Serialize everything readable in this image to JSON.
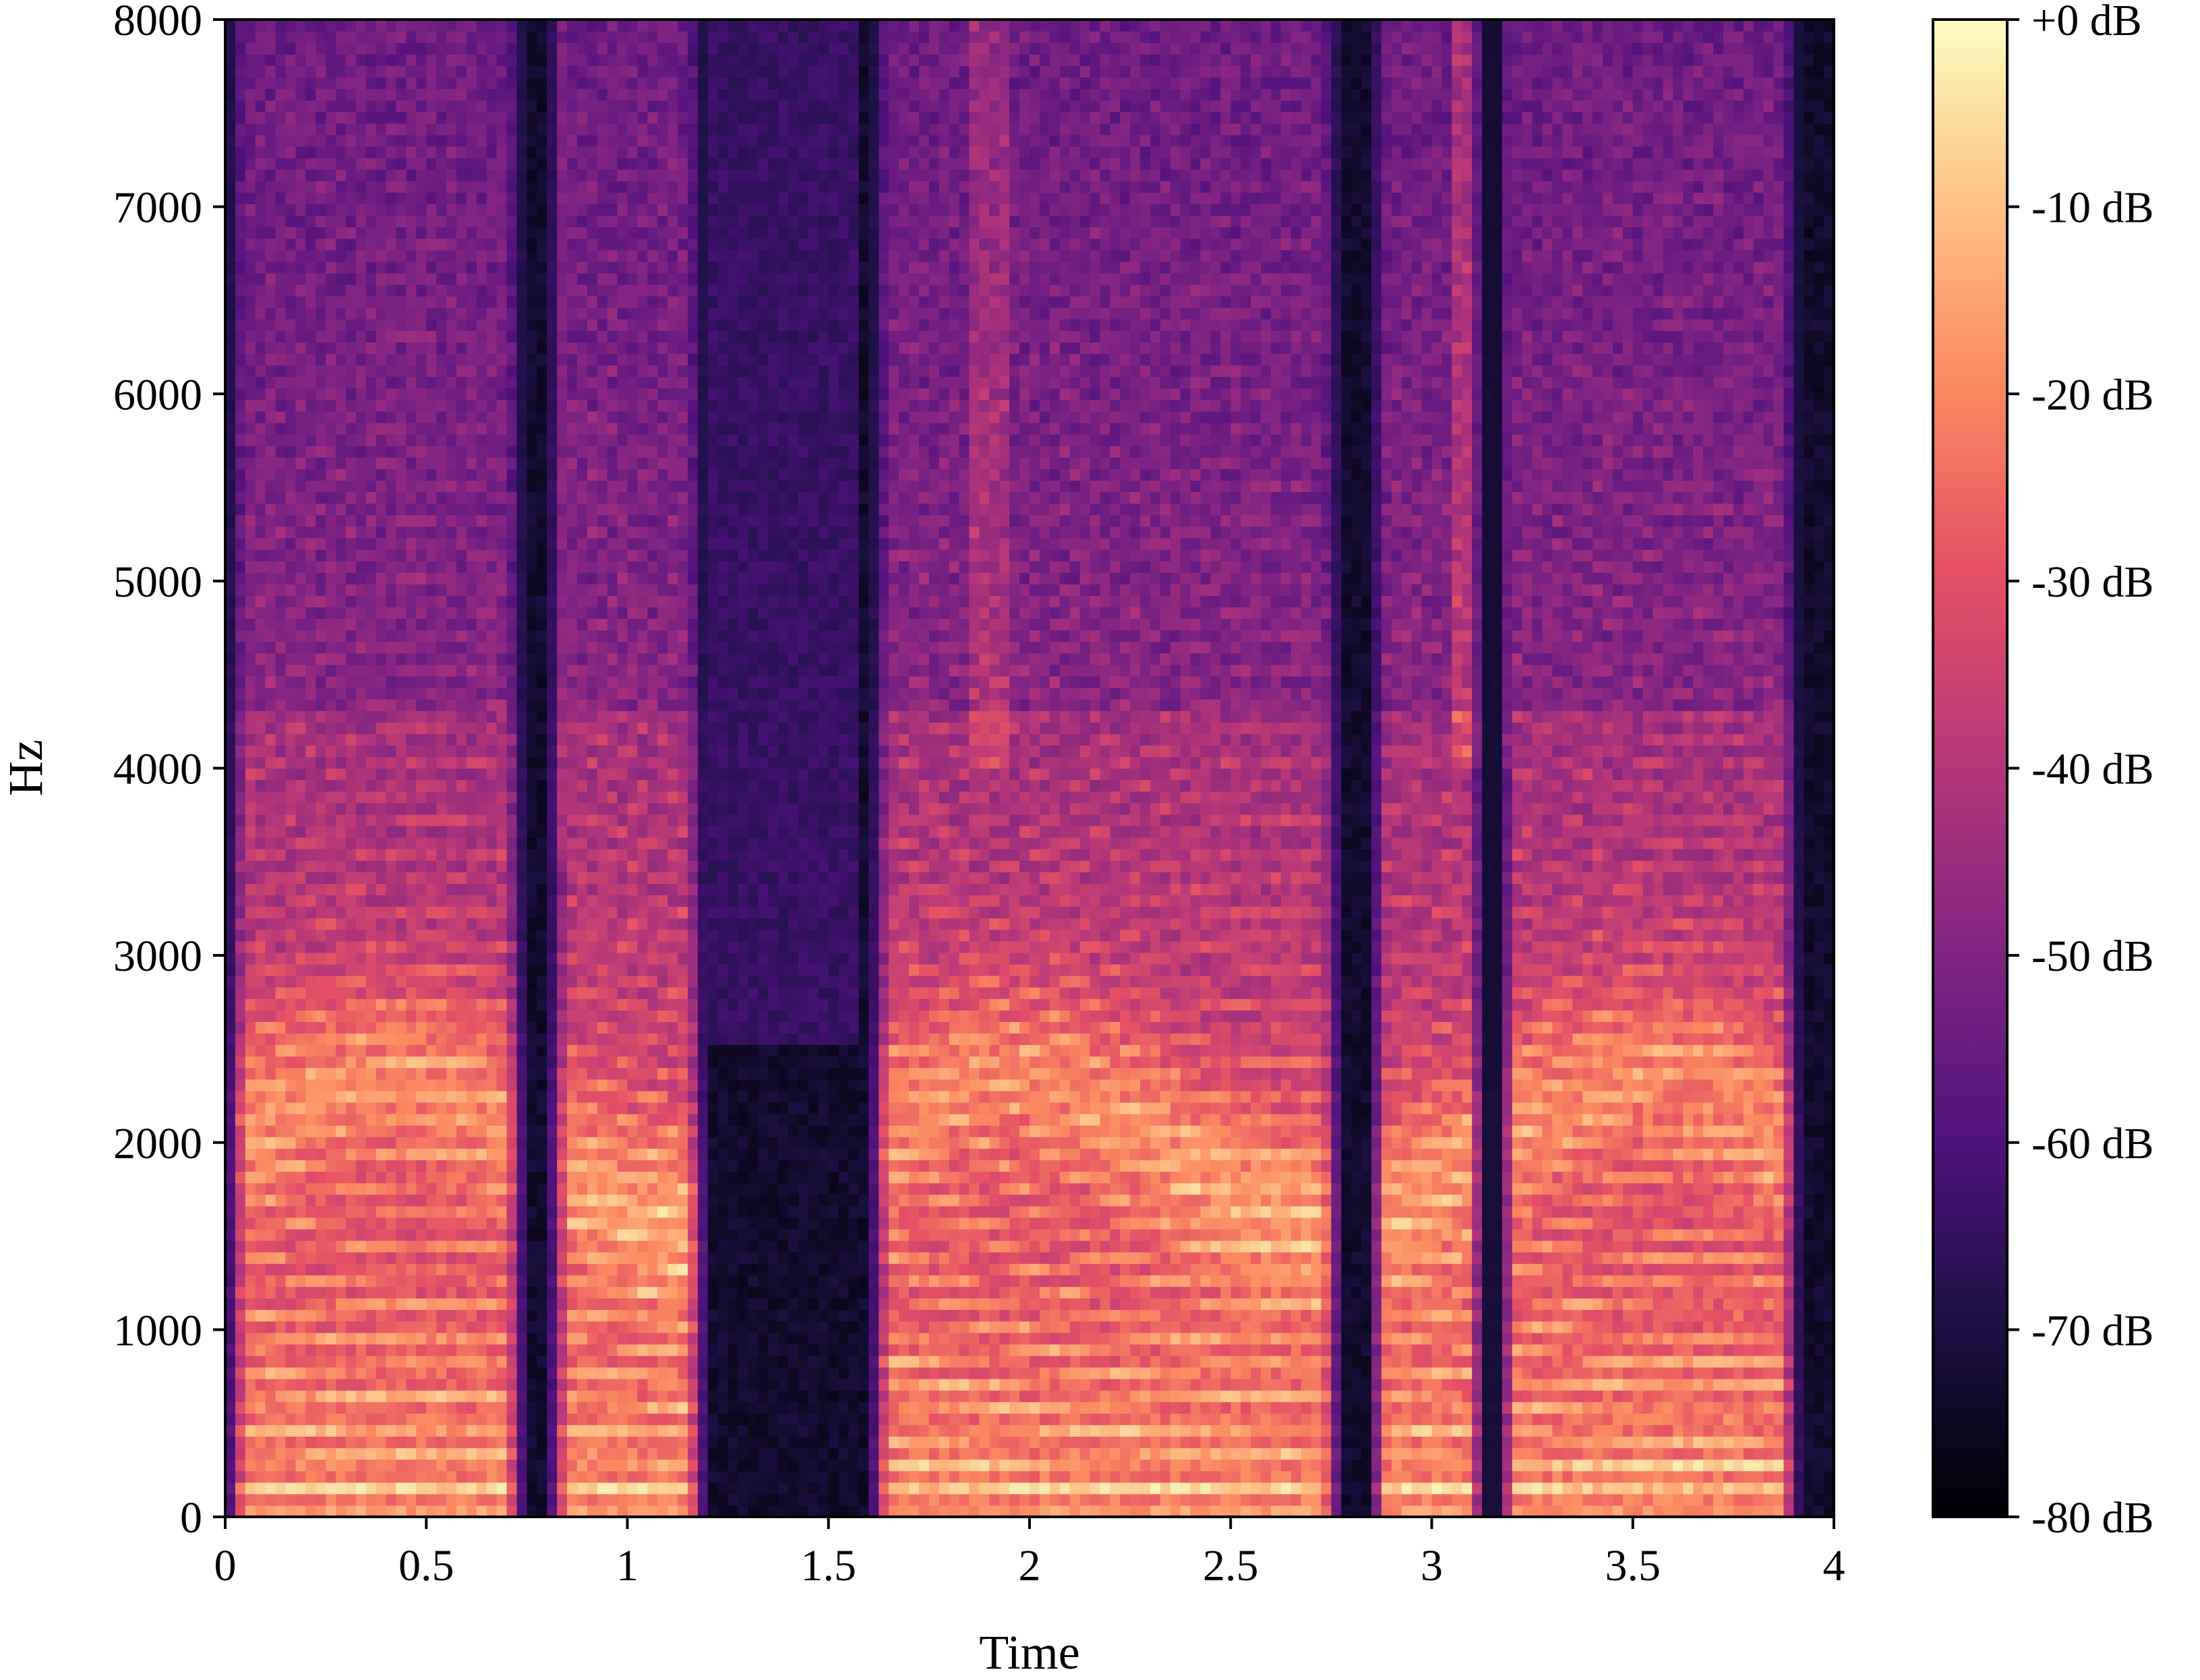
{
  "chart_data": {
    "type": "heatmap",
    "subtype": "spectrogram",
    "colormap": "magma",
    "xlabel": "Time",
    "ylabel": "Hz",
    "xlim": [
      0,
      4
    ],
    "ylim": [
      0,
      8000
    ],
    "x_ticks": [
      "0",
      "0.5",
      "1",
      "1.5",
      "2",
      "2.5",
      "3",
      "3.5",
      "4"
    ],
    "y_ticks": [
      "0",
      "1000",
      "2000",
      "3000",
      "4000",
      "5000",
      "6000",
      "7000",
      "8000"
    ],
    "colorbar": {
      "range_db": [
        -80,
        0
      ],
      "ticks": [
        "+0 dB",
        "-10 dB",
        "-20 dB",
        "-30 dB",
        "-40 dB",
        "-50 dB",
        "-60 dB",
        "-70 dB",
        "-80 dB"
      ]
    },
    "voiced_segments_s": [
      [
        0.0,
        0.75
      ],
      [
        0.8,
        1.2
      ],
      [
        1.6,
        2.78
      ],
      [
        2.84,
        3.14
      ],
      [
        3.16,
        3.92
      ]
    ],
    "silent_segments_s": [
      [
        1.2,
        1.58
      ],
      [
        3.92,
        4.0
      ]
    ],
    "notes_fundamental_hz": 150
  }
}
